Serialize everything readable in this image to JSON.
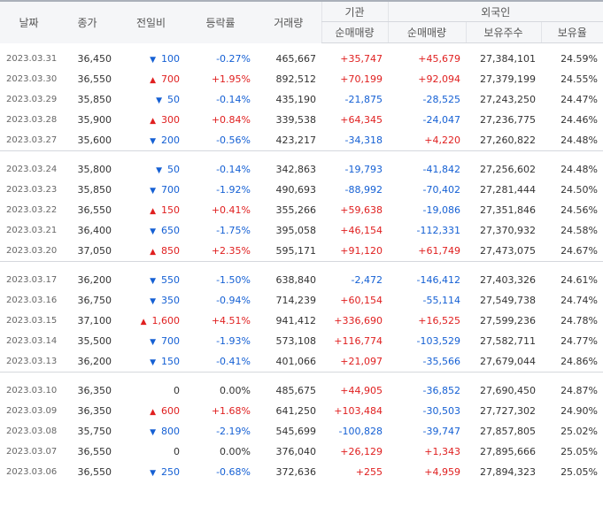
{
  "headers": {
    "date": "날짜",
    "close": "종가",
    "change": "전일비",
    "rate": "등락률",
    "volume": "거래량",
    "inst": "기관",
    "foreign": "외국인",
    "inst_net": "순매매량",
    "foreign_net": "순매매량",
    "foreign_hold": "보유주수",
    "foreign_ratio": "보유율"
  },
  "groups": [
    [
      {
        "date": "2023.03.31",
        "close": "36,450",
        "dir": "down",
        "change": "100",
        "rate": "-0.27%",
        "volume": "465,667",
        "inst": "+35,747",
        "foreign": "+45,679",
        "hold": "27,384,101",
        "ratio": "24.59%"
      },
      {
        "date": "2023.03.30",
        "close": "36,550",
        "dir": "up",
        "change": "700",
        "rate": "+1.95%",
        "volume": "892,512",
        "inst": "+70,199",
        "foreign": "+92,094",
        "hold": "27,379,199",
        "ratio": "24.55%"
      },
      {
        "date": "2023.03.29",
        "close": "35,850",
        "dir": "down",
        "change": "50",
        "rate": "-0.14%",
        "volume": "435,190",
        "inst": "-21,875",
        "foreign": "-28,525",
        "hold": "27,243,250",
        "ratio": "24.47%"
      },
      {
        "date": "2023.03.28",
        "close": "35,900",
        "dir": "up",
        "change": "300",
        "rate": "+0.84%",
        "volume": "339,538",
        "inst": "+64,345",
        "foreign": "-24,047",
        "hold": "27,236,775",
        "ratio": "24.46%"
      },
      {
        "date": "2023.03.27",
        "close": "35,600",
        "dir": "down",
        "change": "200",
        "rate": "-0.56%",
        "volume": "423,217",
        "inst": "-34,318",
        "foreign": "+4,220",
        "hold": "27,260,822",
        "ratio": "24.48%"
      }
    ],
    [
      {
        "date": "2023.03.24",
        "close": "35,800",
        "dir": "down",
        "change": "50",
        "rate": "-0.14%",
        "volume": "342,863",
        "inst": "-19,793",
        "foreign": "-41,842",
        "hold": "27,256,602",
        "ratio": "24.48%"
      },
      {
        "date": "2023.03.23",
        "close": "35,850",
        "dir": "down",
        "change": "700",
        "rate": "-1.92%",
        "volume": "490,693",
        "inst": "-88,992",
        "foreign": "-70,402",
        "hold": "27,281,444",
        "ratio": "24.50%"
      },
      {
        "date": "2023.03.22",
        "close": "36,550",
        "dir": "up",
        "change": "150",
        "rate": "+0.41%",
        "volume": "355,266",
        "inst": "+59,638",
        "foreign": "-19,086",
        "hold": "27,351,846",
        "ratio": "24.56%"
      },
      {
        "date": "2023.03.21",
        "close": "36,400",
        "dir": "down",
        "change": "650",
        "rate": "-1.75%",
        "volume": "395,058",
        "inst": "+46,154",
        "foreign": "-112,331",
        "hold": "27,370,932",
        "ratio": "24.58%"
      },
      {
        "date": "2023.03.20",
        "close": "37,050",
        "dir": "up",
        "change": "850",
        "rate": "+2.35%",
        "volume": "595,171",
        "inst": "+91,120",
        "foreign": "+61,749",
        "hold": "27,473,075",
        "ratio": "24.67%"
      }
    ],
    [
      {
        "date": "2023.03.17",
        "close": "36,200",
        "dir": "down",
        "change": "550",
        "rate": "-1.50%",
        "volume": "638,840",
        "inst": "-2,472",
        "foreign": "-146,412",
        "hold": "27,403,326",
        "ratio": "24.61%"
      },
      {
        "date": "2023.03.16",
        "close": "36,750",
        "dir": "down",
        "change": "350",
        "rate": "-0.94%",
        "volume": "714,239",
        "inst": "+60,154",
        "foreign": "-55,114",
        "hold": "27,549,738",
        "ratio": "24.74%"
      },
      {
        "date": "2023.03.15",
        "close": "37,100",
        "dir": "up",
        "change": "1,600",
        "rate": "+4.51%",
        "volume": "941,412",
        "inst": "+336,690",
        "foreign": "+16,525",
        "hold": "27,599,236",
        "ratio": "24.78%"
      },
      {
        "date": "2023.03.14",
        "close": "35,500",
        "dir": "down",
        "change": "700",
        "rate": "-1.93%",
        "volume": "573,108",
        "inst": "+116,774",
        "foreign": "-103,529",
        "hold": "27,582,711",
        "ratio": "24.77%"
      },
      {
        "date": "2023.03.13",
        "close": "36,200",
        "dir": "down",
        "change": "150",
        "rate": "-0.41%",
        "volume": "401,066",
        "inst": "+21,097",
        "foreign": "-35,566",
        "hold": "27,679,044",
        "ratio": "24.86%"
      }
    ],
    [
      {
        "date": "2023.03.10",
        "close": "36,350",
        "dir": "flat",
        "change": "0",
        "rate": "0.00%",
        "volume": "485,675",
        "inst": "+44,905",
        "foreign": "-36,852",
        "hold": "27,690,450",
        "ratio": "24.87%"
      },
      {
        "date": "2023.03.09",
        "close": "36,350",
        "dir": "up",
        "change": "600",
        "rate": "+1.68%",
        "volume": "641,250",
        "inst": "+103,484",
        "foreign": "-30,503",
        "hold": "27,727,302",
        "ratio": "24.90%"
      },
      {
        "date": "2023.03.08",
        "close": "35,750",
        "dir": "down",
        "change": "800",
        "rate": "-2.19%",
        "volume": "545,699",
        "inst": "-100,828",
        "foreign": "-39,747",
        "hold": "27,857,805",
        "ratio": "25.02%"
      },
      {
        "date": "2023.03.07",
        "close": "36,550",
        "dir": "flat",
        "change": "0",
        "rate": "0.00%",
        "volume": "376,040",
        "inst": "+26,129",
        "foreign": "+1,343",
        "hold": "27,895,666",
        "ratio": "25.05%"
      },
      {
        "date": "2023.03.06",
        "close": "36,550",
        "dir": "down",
        "change": "250",
        "rate": "-0.68%",
        "volume": "372,636",
        "inst": "+255",
        "foreign": "+4,959",
        "hold": "27,894,323",
        "ratio": "25.05%"
      }
    ]
  ],
  "colors": {
    "up": "#e02020",
    "down": "#1560d4",
    "flat": "#333333"
  },
  "icons": {
    "up": "triangle-up-icon",
    "down": "triangle-down-icon"
  }
}
